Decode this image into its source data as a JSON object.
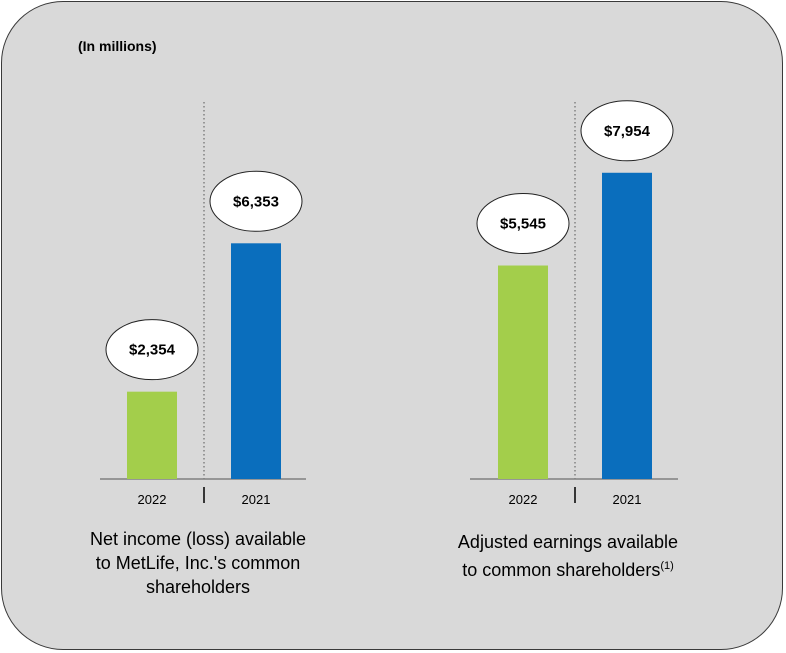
{
  "units_label": "(In millions)",
  "colors": {
    "current": "#a3ce4b",
    "prior": "#0a6ebd",
    "panel": "#d9d9d9"
  },
  "chart_data": [
    {
      "type": "bar",
      "title": "Net income (loss) available to MetLife, Inc.'s common shareholders",
      "categories": [
        "2022",
        "2021"
      ],
      "values": [
        2354,
        6353
      ],
      "data_labels": [
        "$2,354",
        "$6,353"
      ],
      "ylim": [
        0,
        9000
      ],
      "caption_lines": [
        "Net income (loss) available",
        "to MetLife, Inc.'s common",
        "shareholders"
      ],
      "footnote": ""
    },
    {
      "type": "bar",
      "title": "Adjusted earnings available to common shareholders(1)",
      "categories": [
        "2022",
        "2021"
      ],
      "values": [
        5545,
        7954
      ],
      "data_labels": [
        "$5,545",
        "$7,954"
      ],
      "ylim": [
        0,
        9000
      ],
      "caption_lines": [
        "Adjusted earnings available",
        "to common shareholders"
      ],
      "footnote": "(1)"
    }
  ]
}
